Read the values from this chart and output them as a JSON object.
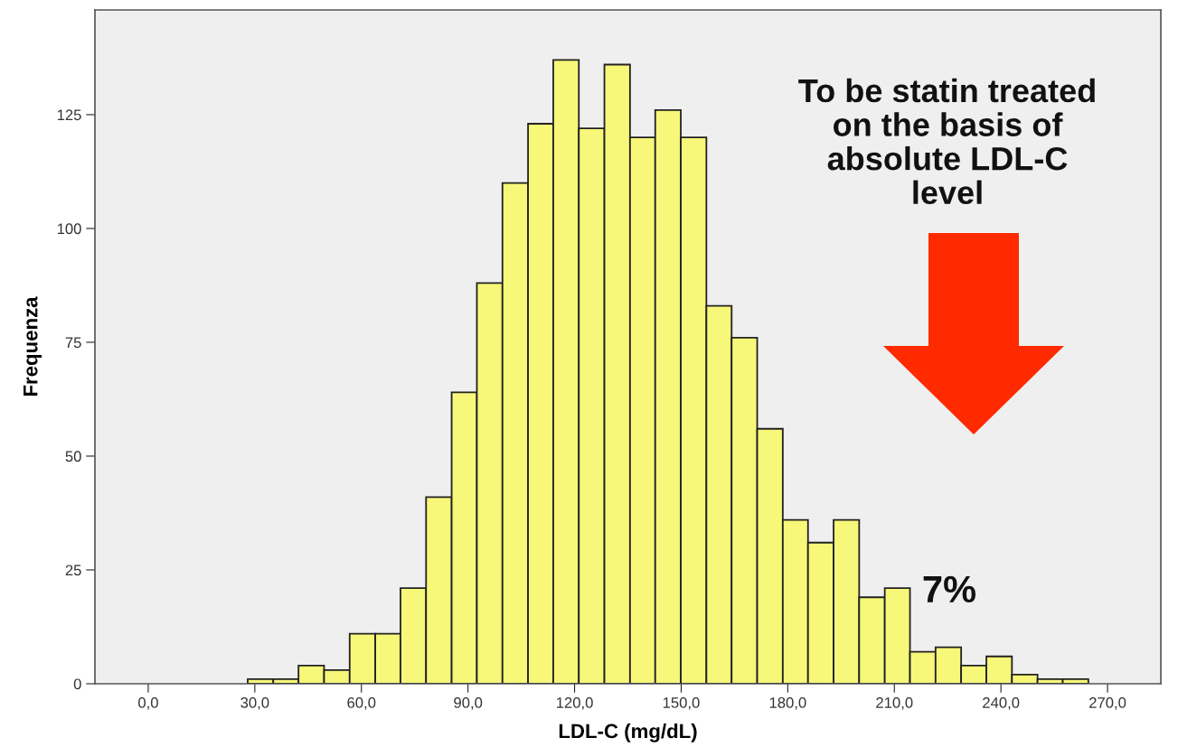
{
  "chart_data": {
    "type": "histogram",
    "xlabel": "LDL-C (mg/dL)",
    "ylabel": "Frequenza",
    "bins": [
      28.0,
      35.2,
      42.3,
      49.5,
      56.7,
      63.9,
      71.0,
      78.2,
      85.4,
      92.5,
      99.7,
      106.9,
      114.0,
      121.2,
      128.4,
      135.6,
      142.7,
      149.9,
      157.1,
      164.2,
      171.4,
      178.6,
      185.7,
      192.9,
      200.1,
      207.3,
      214.4,
      221.6,
      228.8,
      235.9,
      243.1,
      250.3,
      257.4,
      264.6
    ],
    "values": [
      1,
      1,
      4,
      3,
      11,
      11,
      21,
      41,
      64,
      88,
      110,
      123,
      137,
      122,
      136,
      120,
      126,
      120,
      83,
      76,
      56,
      36,
      31,
      36,
      19,
      21,
      7,
      8,
      4,
      6,
      2,
      1,
      1
    ],
    "color": "#f7f77a",
    "xlim": [
      -15,
      285
    ],
    "xticks": [
      {
        "value": 0,
        "label": "0,0"
      },
      {
        "value": 30,
        "label": "30,0"
      },
      {
        "value": 60,
        "label": "60,0"
      },
      {
        "value": 90,
        "label": "90,0"
      },
      {
        "value": 120,
        "label": "120,0"
      },
      {
        "value": 150,
        "label": "150,0"
      },
      {
        "value": 180,
        "label": "180,0"
      },
      {
        "value": 210,
        "label": "210,0"
      },
      {
        "value": 240,
        "label": "240,0"
      },
      {
        "value": 270,
        "label": "270,0"
      }
    ],
    "ylim": [
      0,
      148
    ],
    "yticks": [
      0,
      25,
      50,
      75,
      100,
      125
    ],
    "grid": false,
    "legend": false,
    "annotations": [
      "To be statin treated\non the basis of\nabsolute LDL-C\nlevel",
      "7%"
    ]
  }
}
